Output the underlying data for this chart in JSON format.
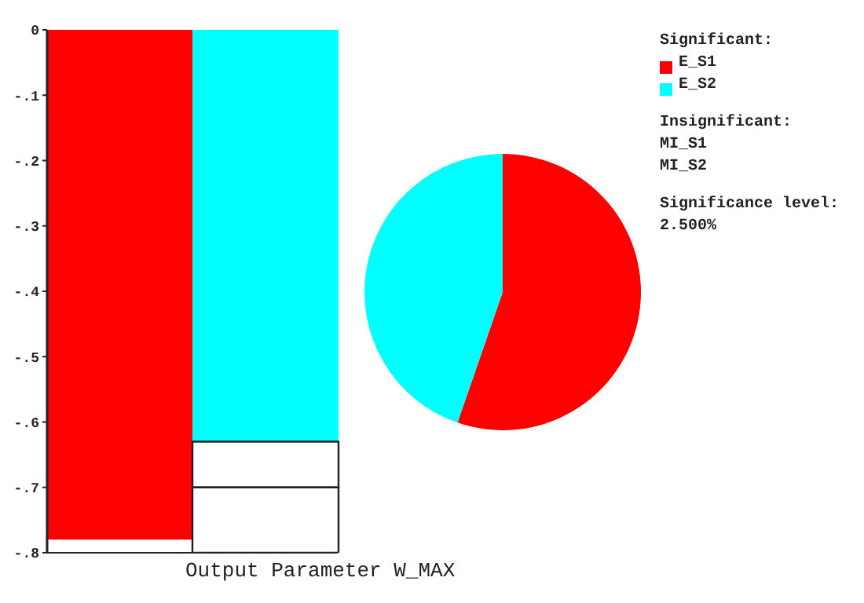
{
  "chart_data": [
    {
      "type": "bar",
      "xlabel": "Output Parameter W_MAX",
      "categories": [
        null,
        null
      ],
      "stacked": true,
      "series": [
        {
          "color": "#ff0000",
          "values": [
            -0.78,
            null
          ]
        },
        {
          "color": "#00ffff",
          "values": [
            null,
            -0.63
          ]
        },
        {
          "color": "#ffffff",
          "values": [
            null,
            -0.07
          ]
        },
        {
          "color": "#ffffff",
          "values": [
            null,
            -0.1
          ]
        }
      ],
      "ylim": [
        -0.8,
        0
      ],
      "yticks": [
        0,
        {
          "value": -0.1,
          "label": "-.1"
        },
        {
          "value": -0.2,
          "label": "-.2"
        },
        {
          "value": -0.3,
          "label": "-.3"
        },
        {
          "value": -0.4,
          "label": "-.4"
        },
        {
          "value": -0.5,
          "label": "-.5"
        },
        {
          "value": -0.6,
          "label": "-.6"
        },
        {
          "value": -0.7,
          "label": "-.7"
        },
        {
          "value": -0.8,
          "label": "-.8"
        }
      ],
      "grid": false
    },
    {
      "type": "pie",
      "categories": [
        "E_S1",
        "E_S2"
      ],
      "values": [
        55.3,
        44.7
      ],
      "colors": [
        "#ff0000",
        "#00ffff"
      ],
      "legend": "right",
      "legend_title": "Significant:",
      "annotations": [
        "Insignificant:",
        "MI_S1",
        "MI_S2",
        "Significance level:",
        "2.500%"
      ]
    }
  ]
}
